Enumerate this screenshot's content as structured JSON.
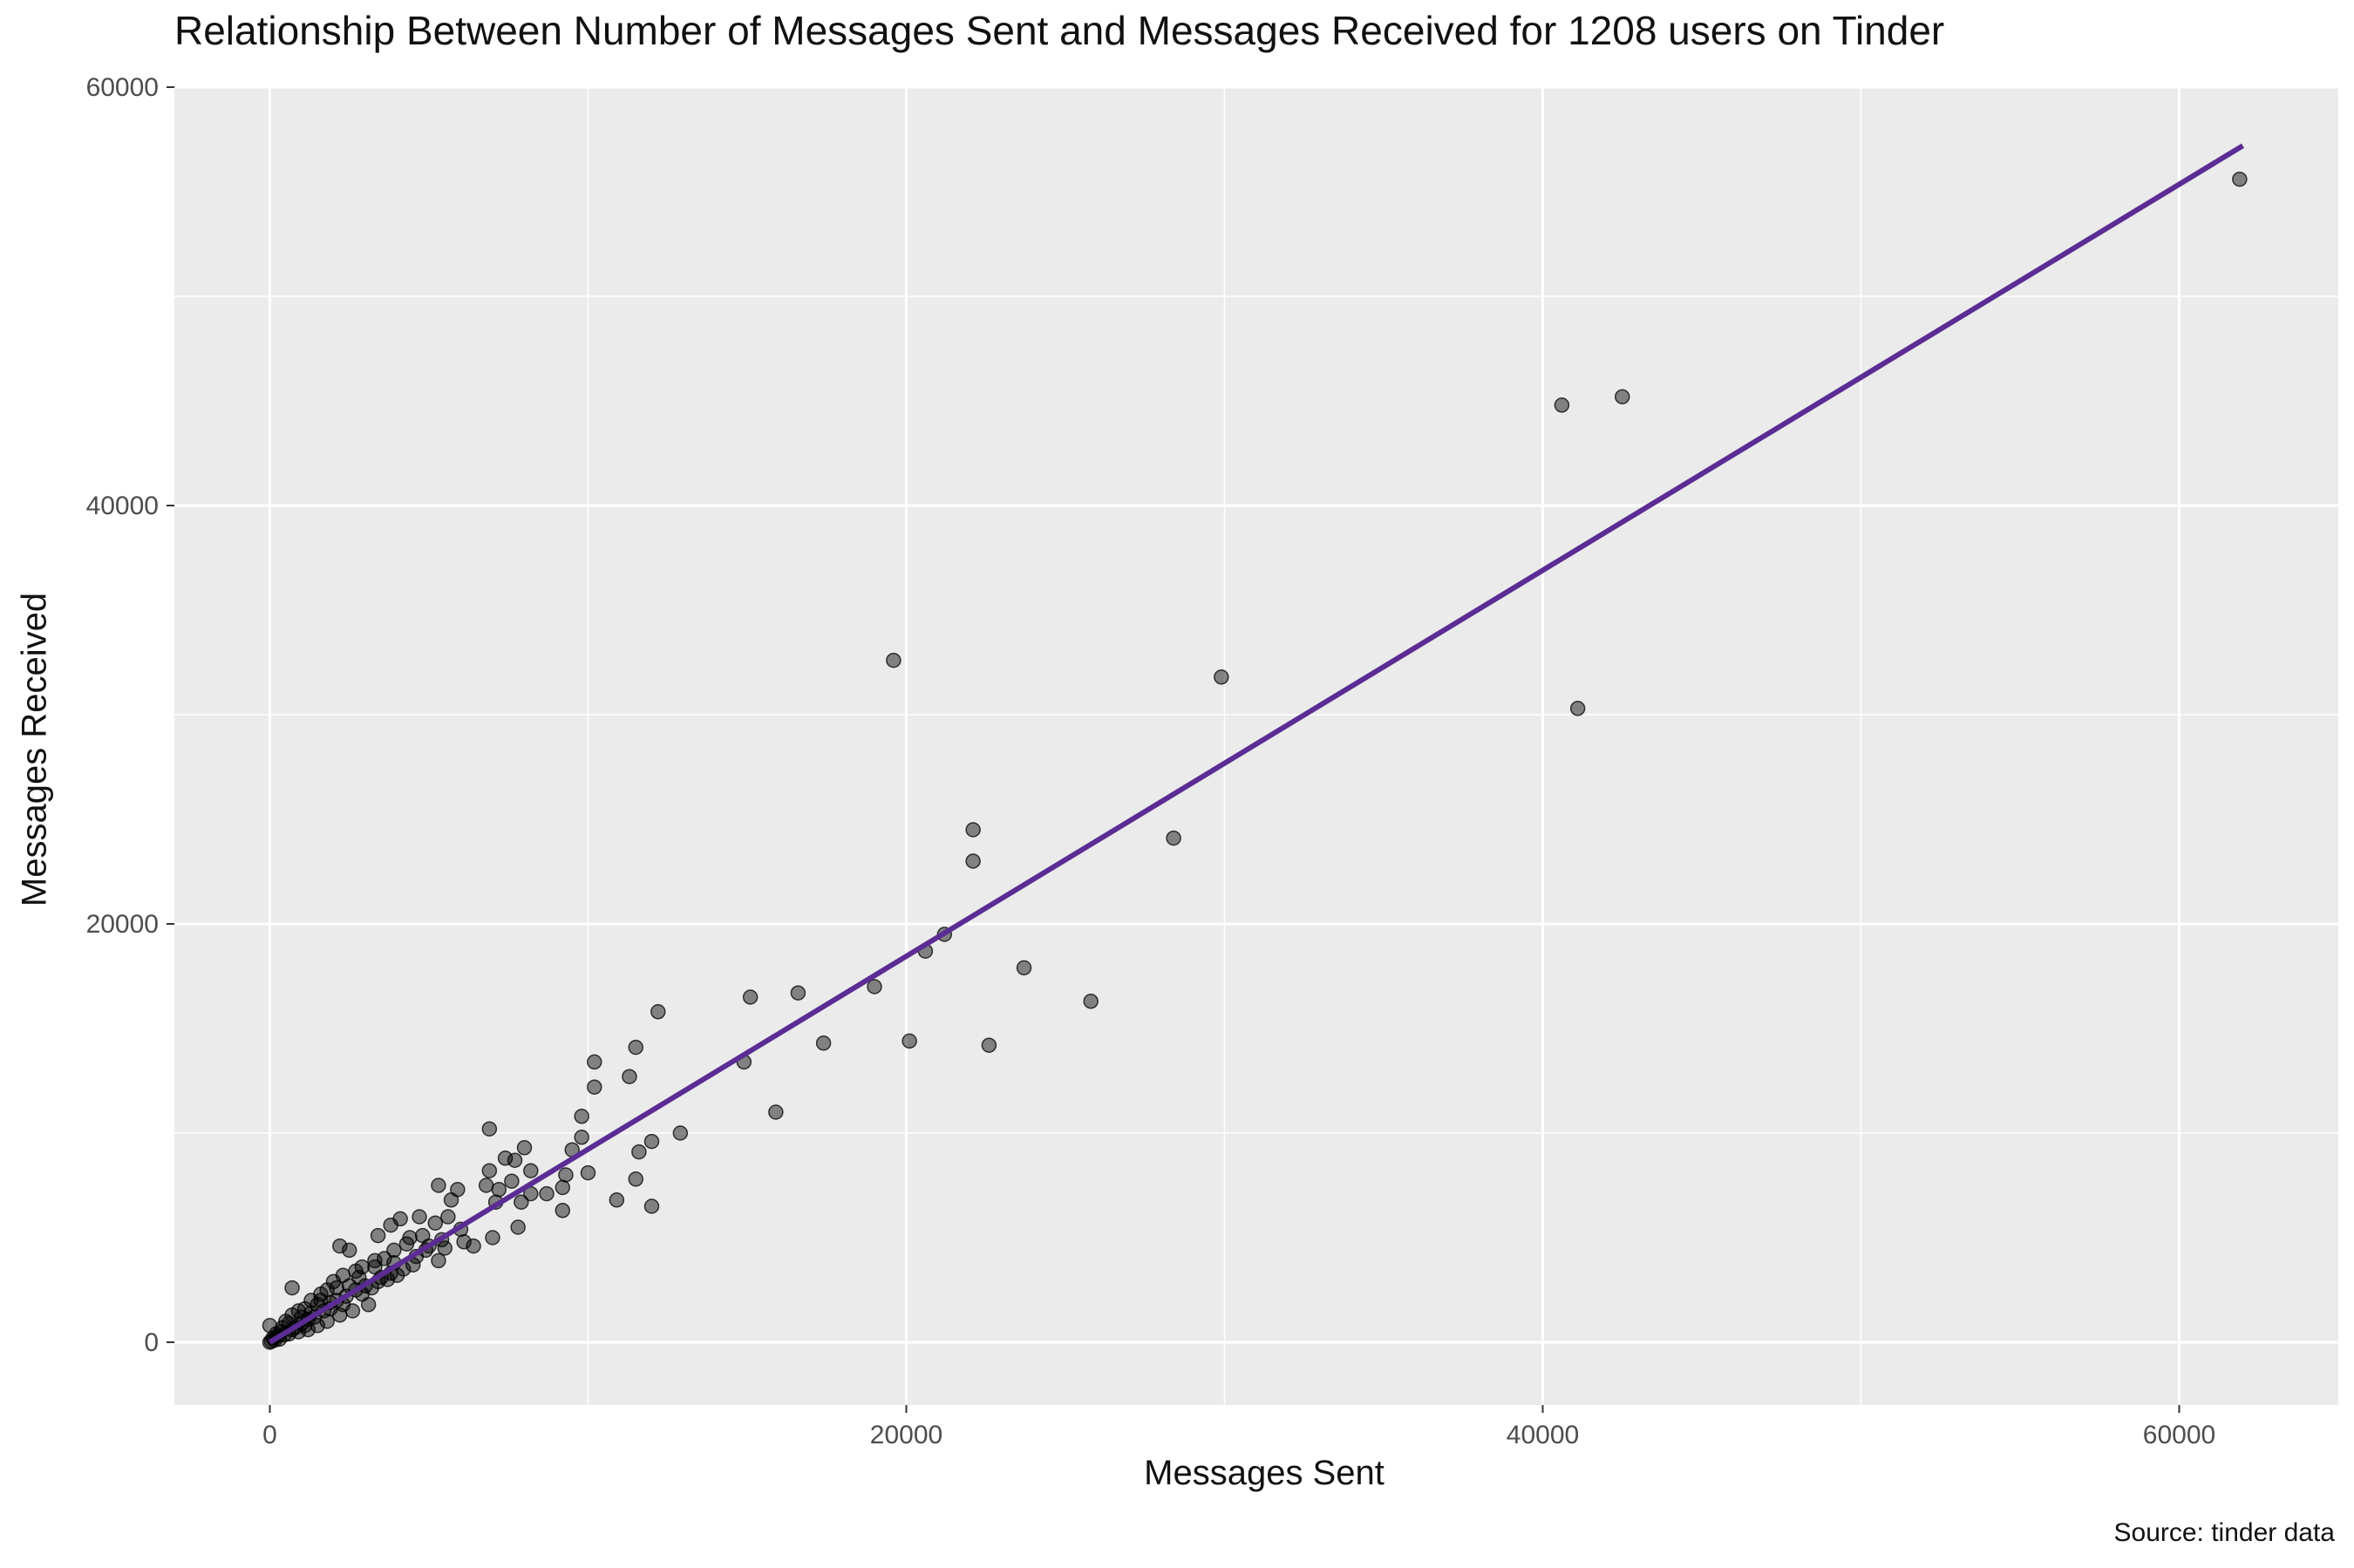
{
  "chart_data": {
    "type": "scatter",
    "title": "Relationship Between Number of Messages Sent and Messages Received for 1208 users on Tinder",
    "xlabel": "Messages Sent",
    "ylabel": "Messages Received",
    "caption": "Source: tinder data",
    "xlim": [
      -3000,
      65000
    ],
    "ylim": [
      -3000,
      60000
    ],
    "x_ticks": [
      0,
      20000,
      40000,
      60000
    ],
    "y_ticks": [
      0,
      20000,
      40000,
      60000
    ],
    "grid": true,
    "point_color": "#000000",
    "point_opacity": 0.45,
    "line_color": "#5b2c94",
    "panel_background": "#ebebeb",
    "trend_line": {
      "x": [
        0,
        62000
      ],
      "y": [
        0,
        57200
      ]
    },
    "points": [
      {
        "x": 61900,
        "y": 55600
      },
      {
        "x": 42500,
        "y": 45200
      },
      {
        "x": 40600,
        "y": 44800
      },
      {
        "x": 41100,
        "y": 30300
      },
      {
        "x": 19600,
        "y": 32600
      },
      {
        "x": 29900,
        "y": 31800
      },
      {
        "x": 28400,
        "y": 24100
      },
      {
        "x": 22100,
        "y": 24500
      },
      {
        "x": 22100,
        "y": 23000
      },
      {
        "x": 21200,
        "y": 19500
      },
      {
        "x": 20600,
        "y": 18700
      },
      {
        "x": 23700,
        "y": 17900
      },
      {
        "x": 19000,
        "y": 17000
      },
      {
        "x": 25800,
        "y": 16300
      },
      {
        "x": 16600,
        "y": 16700
      },
      {
        "x": 15100,
        "y": 16500
      },
      {
        "x": 12200,
        "y": 15800
      },
      {
        "x": 11500,
        "y": 14100
      },
      {
        "x": 10200,
        "y": 13400
      },
      {
        "x": 17400,
        "y": 14300
      },
      {
        "x": 20100,
        "y": 14400
      },
      {
        "x": 22600,
        "y": 14200
      },
      {
        "x": 14900,
        "y": 13400
      },
      {
        "x": 11300,
        "y": 12700
      },
      {
        "x": 10200,
        "y": 12200
      },
      {
        "x": 15900,
        "y": 11000
      },
      {
        "x": 9800,
        "y": 10800
      },
      {
        "x": 12900,
        "y": 10000
      },
      {
        "x": 12000,
        "y": 9600
      },
      {
        "x": 11600,
        "y": 9100
      },
      {
        "x": 9800,
        "y": 9800
      },
      {
        "x": 9500,
        "y": 9200
      },
      {
        "x": 6900,
        "y": 10200
      },
      {
        "x": 8000,
        "y": 9300
      },
      {
        "x": 7700,
        "y": 8700
      },
      {
        "x": 7400,
        "y": 8800
      },
      {
        "x": 6900,
        "y": 8200
      },
      {
        "x": 7600,
        "y": 7700
      },
      {
        "x": 8200,
        "y": 8200
      },
      {
        "x": 9300,
        "y": 8000
      },
      {
        "x": 10000,
        "y": 8100
      },
      {
        "x": 11500,
        "y": 7800
      },
      {
        "x": 9200,
        "y": 7400
      },
      {
        "x": 8700,
        "y": 7100
      },
      {
        "x": 8200,
        "y": 7100
      },
      {
        "x": 7200,
        "y": 7300
      },
      {
        "x": 6800,
        "y": 7500
      },
      {
        "x": 5900,
        "y": 7300
      },
      {
        "x": 5300,
        "y": 7500
      },
      {
        "x": 5700,
        "y": 6800
      },
      {
        "x": 7100,
        "y": 6700
      },
      {
        "x": 7900,
        "y": 6700
      },
      {
        "x": 10900,
        "y": 6800
      },
      {
        "x": 12000,
        "y": 6500
      },
      {
        "x": 9200,
        "y": 6300
      },
      {
        "x": 7800,
        "y": 5500
      },
      {
        "x": 7000,
        "y": 5000
      },
      {
        "x": 6400,
        "y": 4600
      },
      {
        "x": 6000,
        "y": 5400
      },
      {
        "x": 5600,
        "y": 6000
      },
      {
        "x": 5200,
        "y": 5700
      },
      {
        "x": 4700,
        "y": 6000
      },
      {
        "x": 4100,
        "y": 5900
      },
      {
        "x": 3800,
        "y": 5600
      },
      {
        "x": 3400,
        "y": 5100
      },
      {
        "x": 2500,
        "y": 4400
      },
      {
        "x": 2200,
        "y": 4600
      },
      {
        "x": 6100,
        "y": 4800
      },
      {
        "x": 5500,
        "y": 4500
      },
      {
        "x": 5300,
        "y": 3900
      },
      {
        "x": 4900,
        "y": 4400
      },
      {
        "x": 4300,
        "y": 4700
      },
      {
        "x": 3900,
        "y": 4400
      },
      {
        "x": 3600,
        "y": 4000
      },
      {
        "x": 3300,
        "y": 3600
      },
      {
        "x": 2900,
        "y": 3600
      },
      {
        "x": 4500,
        "y": 3700
      },
      {
        "x": 4000,
        "y": 3200
      },
      {
        "x": 3700,
        "y": 3000
      },
      {
        "x": 3200,
        "y": 2600
      },
      {
        "x": 2800,
        "y": 3100
      },
      {
        "x": 2500,
        "y": 2700
      },
      {
        "x": 2300,
        "y": 3200
      },
      {
        "x": 2000,
        "y": 2900
      },
      {
        "x": 1800,
        "y": 2500
      },
      {
        "x": 1600,
        "y": 2300
      },
      {
        "x": 1500,
        "y": 1800
      },
      {
        "x": 1300,
        "y": 2000
      },
      {
        "x": 1100,
        "y": 1600
      },
      {
        "x": 900,
        "y": 1500
      },
      {
        "x": 700,
        "y": 1300
      },
      {
        "x": 700,
        "y": 2600
      },
      {
        "x": 500,
        "y": 1000
      },
      {
        "x": 400,
        "y": 700
      },
      {
        "x": 200,
        "y": 400
      },
      {
        "x": 100,
        "y": 200
      },
      {
        "x": 0,
        "y": 0
      },
      {
        "x": 0,
        "y": 800
      },
      {
        "x": 300,
        "y": 150
      },
      {
        "x": 600,
        "y": 400
      },
      {
        "x": 800,
        "y": 700
      },
      {
        "x": 1000,
        "y": 900
      },
      {
        "x": 1200,
        "y": 1100
      },
      {
        "x": 1400,
        "y": 1200
      },
      {
        "x": 1700,
        "y": 1500
      },
      {
        "x": 1900,
        "y": 1900
      },
      {
        "x": 2100,
        "y": 2000
      },
      {
        "x": 2400,
        "y": 2200
      },
      {
        "x": 2700,
        "y": 2500
      },
      {
        "x": 3000,
        "y": 2700
      },
      {
        "x": 3100,
        "y": 1800
      },
      {
        "x": 2600,
        "y": 1500
      },
      {
        "x": 2200,
        "y": 1300
      },
      {
        "x": 1800,
        "y": 1000
      },
      {
        "x": 1500,
        "y": 800
      },
      {
        "x": 1200,
        "y": 600
      },
      {
        "x": 900,
        "y": 500
      },
      {
        "x": 3500,
        "y": 3100
      },
      {
        "x": 4200,
        "y": 3500
      },
      {
        "x": 4600,
        "y": 4100
      },
      {
        "x": 5000,
        "y": 4600
      },
      {
        "x": 5400,
        "y": 4900
      },
      {
        "x": 4800,
        "y": 5100
      },
      {
        "x": 4400,
        "y": 5000
      },
      {
        "x": 3900,
        "y": 3800
      },
      {
        "x": 3300,
        "y": 3900
      },
      {
        "x": 2700,
        "y": 3400
      },
      {
        "x": 2100,
        "y": 2600
      },
      {
        "x": 1600,
        "y": 2000
      },
      {
        "x": 1000,
        "y": 1200
      },
      {
        "x": 600,
        "y": 900
      },
      {
        "x": 350,
        "y": 500
      },
      {
        "x": 150,
        "y": 100
      },
      {
        "x": 50,
        "y": 50
      },
      {
        "x": 250,
        "y": 300
      },
      {
        "x": 450,
        "y": 350
      },
      {
        "x": 700,
        "y": 600
      },
      {
        "x": 1100,
        "y": 800
      },
      {
        "x": 1300,
        "y": 1400
      },
      {
        "x": 1900,
        "y": 1600
      },
      {
        "x": 2300,
        "y": 1800
      },
      {
        "x": 2900,
        "y": 2300
      },
      {
        "x": 3400,
        "y": 2900
      },
      {
        "x": 3800,
        "y": 3300
      }
    ]
  }
}
